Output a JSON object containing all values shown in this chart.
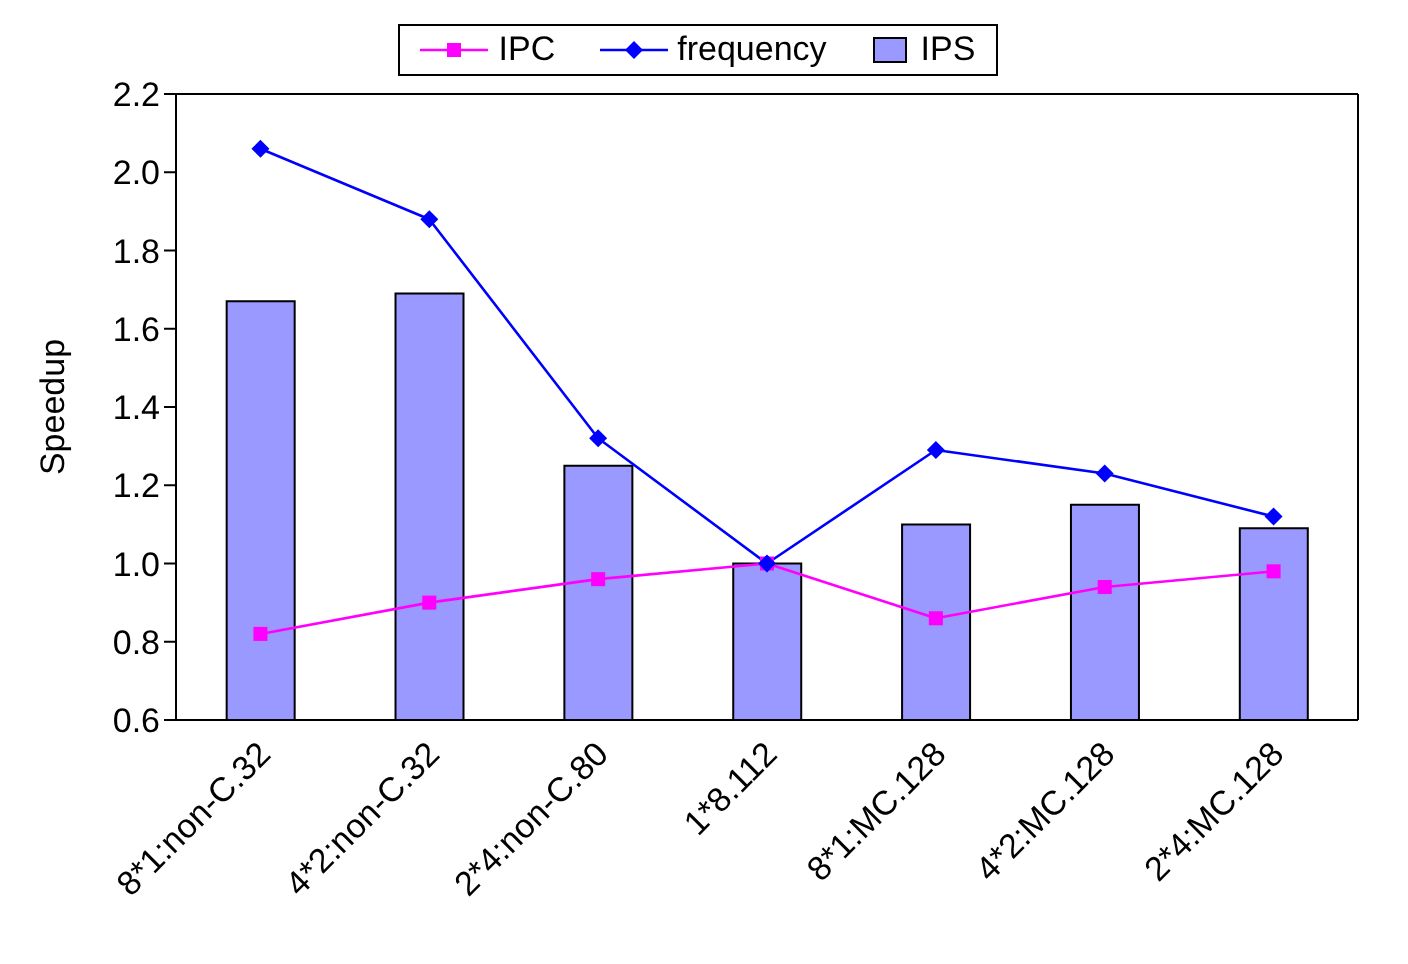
{
  "chart_data": {
    "type": "bar",
    "ylabel": "Speedup",
    "categories": [
      "8*1:non-C.32",
      "4*2:non-C.32",
      "2*4:non-C.80",
      "1*8.112",
      "8*1:MC.128",
      "4*2:MC.128",
      "2*4:MC.128"
    ],
    "series": [
      {
        "name": "IPC",
        "type": "line",
        "color": "#ff00ff",
        "marker": "square",
        "values": [
          0.82,
          0.9,
          0.96,
          1.0,
          0.86,
          0.94,
          0.98
        ]
      },
      {
        "name": "frequency",
        "type": "line",
        "color": "#0000ff",
        "marker": "diamond",
        "values": [
          2.06,
          1.88,
          1.32,
          1.0,
          1.29,
          1.23,
          1.12
        ]
      },
      {
        "name": "IPS",
        "color": "#9999ff",
        "values": [
          1.67,
          1.69,
          1.25,
          1.0,
          1.1,
          1.15,
          1.09
        ]
      }
    ],
    "ylim": [
      0.6,
      2.2
    ],
    "yticks": [
      0.6,
      0.8,
      {
        "value": 1.0,
        "label": "1.0"
      },
      1.2,
      1.4,
      1.6,
      1.8,
      {
        "value": 2.0,
        "label": "2.0"
      },
      2.2
    ],
    "grid": false,
    "legend": "top"
  }
}
